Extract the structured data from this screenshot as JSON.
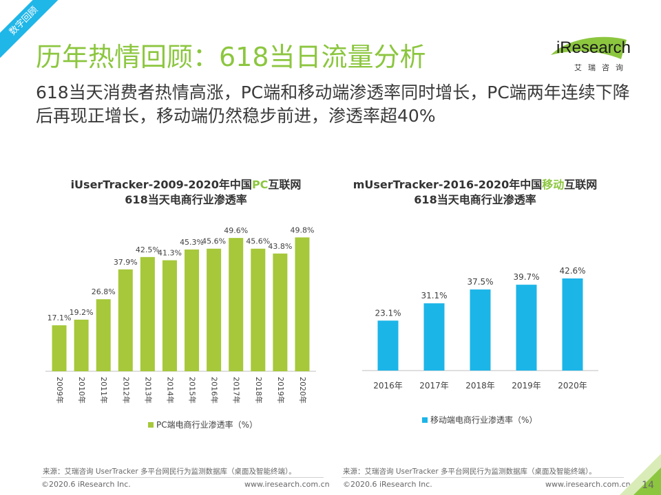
{
  "corner_tag": "数字回顾",
  "title": "历年热情回顾：618当日流量分析",
  "subtitle": "618当天消费者热情高涨，PC端和移动端渗透率同时增长，PC端两年连续下降后再现正增长，移动端仍然稳步前进，渗透率超40%",
  "logo": {
    "wordmark": "iResearch",
    "cn": "艾瑞咨询"
  },
  "colors": {
    "accent": "#8cc63f",
    "pc_bar": "#a6c83a",
    "mobile_bar": "#1cb5e8"
  },
  "chart_data": [
    {
      "type": "bar",
      "title_line1_pre": "iUserTracker-2009-2020年中国",
      "title_line1_hl": "PC",
      "title_line1_post": "互联网",
      "title_line2": "618当天电商行业渗透率",
      "categories": [
        "2009年",
        "2010年",
        "2011年",
        "2012年",
        "2013年",
        "2014年",
        "2015年",
        "2016年",
        "2017年",
        "2018年",
        "2019年",
        "2020年"
      ],
      "series": [
        {
          "name": "PC端电商行业渗透率（%）",
          "values": [
            17.1,
            19.2,
            26.8,
            37.9,
            42.5,
            41.3,
            45.3,
            45.6,
            49.6,
            45.6,
            43.8,
            49.8
          ]
        }
      ],
      "labels": [
        "17.1%",
        "19.2%",
        "26.8%",
        "37.9%",
        "42.5%",
        "41.3%",
        "45.3%",
        "45.6%",
        "49.6%",
        "45.6%",
        "43.8%",
        "49.8%"
      ],
      "ylim": [
        0,
        55
      ],
      "legend": "bottom"
    },
    {
      "type": "bar",
      "title_line1_pre": "mUserTracker-2016-2020年中国",
      "title_line1_hl": "移动",
      "title_line1_post": "互联网",
      "title_line2": "618当天电商行业渗透率",
      "categories": [
        "2016年",
        "2017年",
        "2018年",
        "2019年",
        "2020年"
      ],
      "series": [
        {
          "name": "移动端电商行业渗透率（%）",
          "values": [
            23.1,
            31.1,
            37.5,
            39.7,
            42.6
          ]
        }
      ],
      "labels": [
        "23.1%",
        "31.1%",
        "37.5%",
        "39.7%",
        "42.6%"
      ],
      "ylim": [
        0,
        55
      ],
      "legend": "bottom"
    }
  ],
  "source_text": "来源：艾瑞咨询 UserTracker 多平台网民行为监测数据库（桌面及智能终端）。",
  "footer": {
    "copyright": "©2020.6 iResearch Inc.",
    "website": "www.iresearch.com.cn",
    "page": "14"
  }
}
